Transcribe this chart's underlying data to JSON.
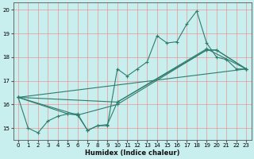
{
  "xlabel": "Humidex (Indice chaleur)",
  "bg_color": "#c8eeed",
  "grid_color": "#f08080",
  "line_color": "#2e7d6e",
  "xlim": [
    -0.5,
    23.5
  ],
  "ylim": [
    14.5,
    20.3
  ],
  "yticks": [
    15,
    16,
    17,
    18,
    19,
    20
  ],
  "xticks": [
    0,
    1,
    2,
    3,
    4,
    5,
    6,
    7,
    8,
    9,
    10,
    11,
    12,
    13,
    14,
    15,
    16,
    17,
    18,
    19,
    20,
    21,
    22,
    23
  ],
  "line1_x": [
    0,
    1,
    2,
    3,
    4,
    5,
    6,
    7,
    8,
    9,
    10,
    11,
    12,
    13,
    14,
    15,
    16,
    17,
    18,
    19,
    20,
    21,
    22,
    23
  ],
  "line1_y": [
    16.3,
    15.0,
    14.8,
    15.3,
    15.5,
    15.6,
    15.6,
    14.9,
    15.1,
    15.1,
    17.5,
    17.2,
    17.5,
    17.8,
    18.9,
    18.6,
    18.65,
    19.4,
    19.95,
    18.6,
    18.0,
    17.9,
    17.5,
    17.5
  ],
  "line2_x": [
    0,
    6,
    7,
    8,
    9,
    10,
    19,
    20,
    23
  ],
  "line2_y": [
    16.3,
    15.55,
    14.9,
    15.1,
    15.15,
    16.1,
    18.3,
    18.3,
    17.5
  ],
  "line3_x": [
    0,
    5,
    6,
    10,
    19,
    20,
    23
  ],
  "line3_y": [
    16.3,
    15.6,
    15.55,
    16.0,
    18.3,
    18.3,
    17.5
  ],
  "line4_x": [
    0,
    23
  ],
  "line4_y": [
    16.3,
    17.5
  ],
  "line5_x": [
    0,
    10,
    19,
    23
  ],
  "line5_y": [
    16.3,
    16.1,
    18.35,
    17.5
  ]
}
